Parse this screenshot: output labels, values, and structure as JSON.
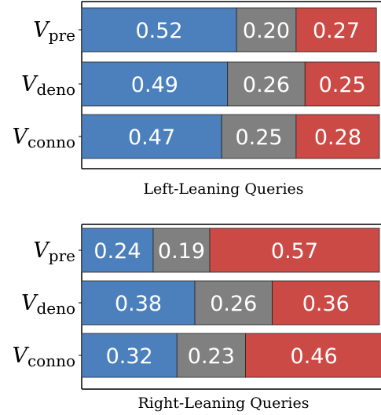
{
  "chart_data": [
    {
      "type": "bar",
      "orientation": "horizontal",
      "stacked": true,
      "caption": "Left-Leaning Queries",
      "categories": [
        {
          "main": "V",
          "sub": "pre"
        },
        {
          "main": "V",
          "sub": "deno"
        },
        {
          "main": "V",
          "sub": "conno"
        }
      ],
      "series": [
        {
          "color": "#4c80bd",
          "values": [
            0.52,
            0.49,
            0.47
          ],
          "labels": [
            "0.52",
            "0.49",
            "0.47"
          ]
        },
        {
          "color": "#808080",
          "values": [
            0.2,
            0.26,
            0.25
          ],
          "labels": [
            "0.20",
            "0.26",
            "0.25"
          ]
        },
        {
          "color": "#cc4a45",
          "values": [
            0.27,
            0.25,
            0.28
          ],
          "labels": [
            "0.27",
            "0.25",
            "0.28"
          ]
        }
      ],
      "xlim": [
        0,
        1
      ],
      "grid": false
    },
    {
      "type": "bar",
      "orientation": "horizontal",
      "stacked": true,
      "caption": "Right-Leaning Queries",
      "categories": [
        {
          "main": "V",
          "sub": "pre"
        },
        {
          "main": "V",
          "sub": "deno"
        },
        {
          "main": "V",
          "sub": "conno"
        }
      ],
      "series": [
        {
          "color": "#4c80bd",
          "values": [
            0.24,
            0.38,
            0.32
          ],
          "labels": [
            "0.24",
            "0.38",
            "0.32"
          ]
        },
        {
          "color": "#808080",
          "values": [
            0.19,
            0.26,
            0.23
          ],
          "labels": [
            "0.19",
            "0.26",
            "0.23"
          ]
        },
        {
          "color": "#cc4a45",
          "values": [
            0.57,
            0.36,
            0.46
          ],
          "labels": [
            "0.57",
            "0.36",
            "0.46"
          ]
        }
      ],
      "xlim": [
        0,
        1
      ],
      "grid": false
    }
  ]
}
